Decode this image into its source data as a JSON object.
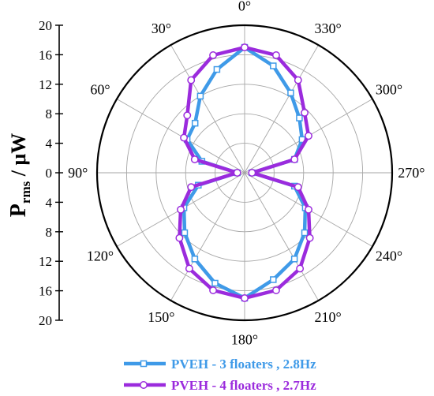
{
  "chart_data": {
    "type": "polar-line",
    "ylabel_main": "P",
    "ylabel_sub": "rms",
    "ylabel_unit": " / μW",
    "rlim": [
      0,
      20
    ],
    "radial_ticks": [
      "20",
      "16",
      "12",
      "8",
      "4",
      "0",
      "4",
      "8",
      "12",
      "16",
      "20"
    ],
    "angle_labels": [
      "0°",
      "30°",
      "60°",
      "90°",
      "120°",
      "150°",
      "180°",
      "210°",
      "240°",
      "270°",
      "300°",
      "330°"
    ],
    "angle_direction": "counterclockwise, 0° at top",
    "grid": true,
    "legend_position": "bottom",
    "series": [
      {
        "name": "PVEH - 3 floaters , 2.8Hz",
        "color": "#3f9ae8",
        "marker": "square",
        "angles": [
          0,
          15,
          30,
          45,
          60,
          75,
          90,
          105,
          120,
          135,
          150,
          165,
          180,
          195,
          210,
          225,
          240,
          255,
          270,
          285,
          300,
          315,
          330,
          345
        ],
        "values": [
          17.0,
          14.5,
          12.0,
          9.5,
          9.0,
          6.0,
          1.0,
          6.5,
          9.5,
          11.5,
          13.5,
          15.5,
          17.0,
          15.0,
          13.5,
          11.5,
          9.5,
          7.0,
          1.0,
          7.0,
          9.0,
          10.5,
          12.5,
          15.0
        ]
      },
      {
        "name": "PVEH - 4 floaters , 2.7Hz",
        "color": "#9b2bdd",
        "marker": "circle",
        "angles": [
          0,
          15,
          30,
          45,
          60,
          75,
          90,
          105,
          120,
          135,
          150,
          165,
          180,
          195,
          210,
          225,
          240,
          255,
          270,
          285,
          300,
          315,
          330,
          345
        ],
        "values": [
          17.0,
          16.5,
          14.5,
          11.0,
          9.5,
          7.0,
          1.0,
          7.5,
          10.0,
          12.5,
          15.0,
          16.5,
          17.0,
          16.5,
          15.0,
          12.5,
          10.0,
          7.5,
          1.0,
          7.0,
          10.0,
          11.5,
          14.5,
          16.5
        ]
      }
    ]
  }
}
